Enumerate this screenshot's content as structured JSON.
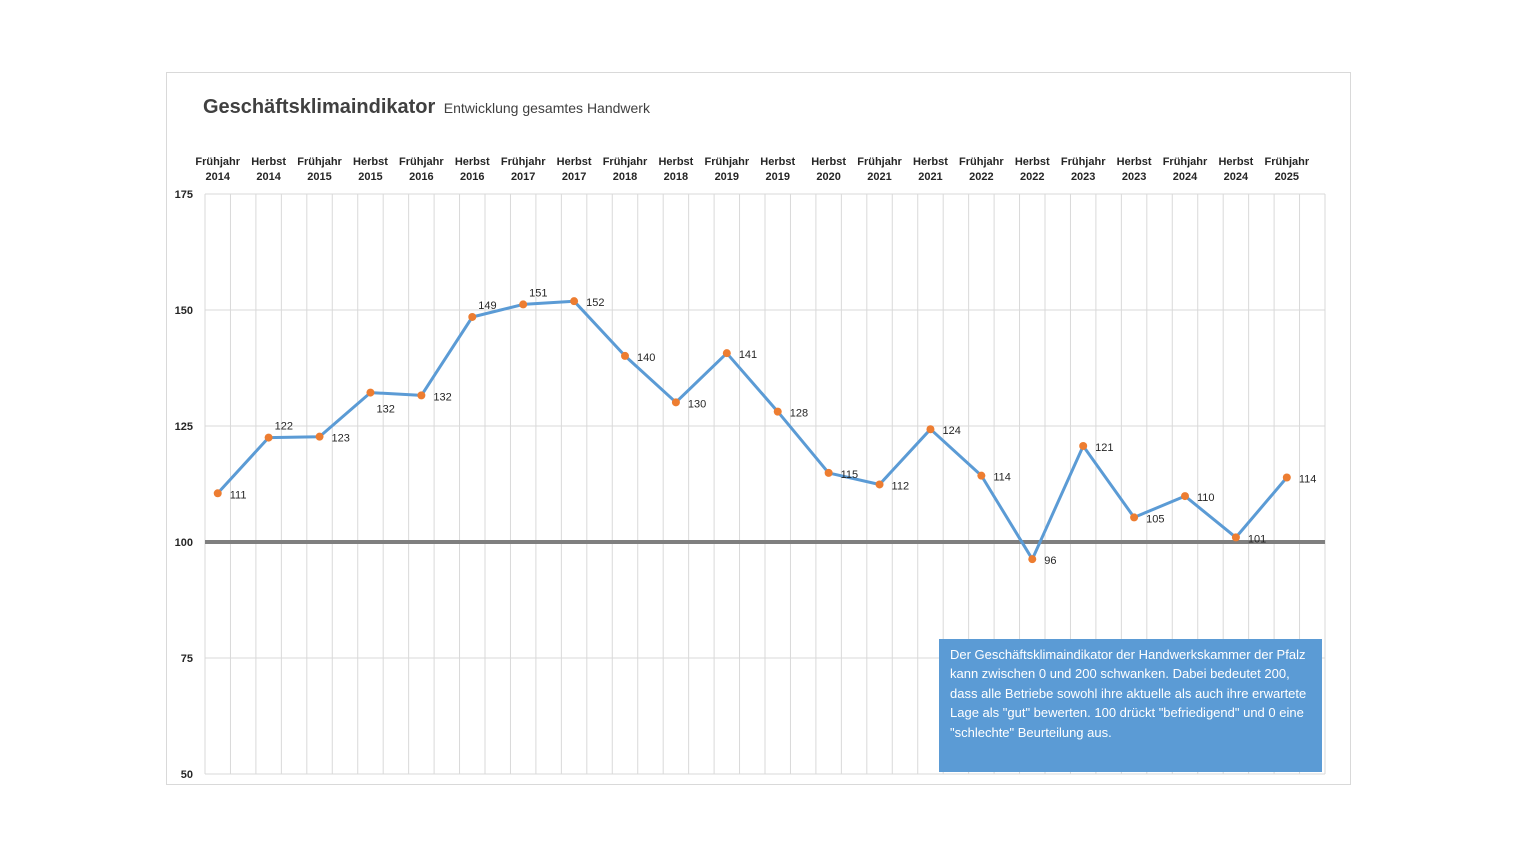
{
  "title": "Geschäftsklimaindikator",
  "subtitle": "Entwicklung gesamtes Handwerk",
  "info_text": "Der Geschäftsklimaindikator der Handwerkskammer der Pfalz kann zwischen 0 und 200 schwanken. Dabei bedeutet 200, dass alle Betriebe sowohl ihre aktuelle als auch ihre erwartete Lage als \"gut\" bewerten. 100 drückt \"befriedigend\" und 0 eine \"schlechte\" Beurteilung aus.",
  "chart_data": {
    "type": "line",
    "title": "Geschäftsklimaindikator",
    "subtitle": "Entwicklung gesamtes Handwerk",
    "categories": [
      [
        "Frühjahr",
        "2014"
      ],
      [
        "Herbst",
        "2014"
      ],
      [
        "Frühjahr",
        "2015"
      ],
      [
        "Herbst",
        "2015"
      ],
      [
        "Frühjahr",
        "2016"
      ],
      [
        "Herbst",
        "2016"
      ],
      [
        "Frühjahr",
        "2017"
      ],
      [
        "Herbst",
        "2017"
      ],
      [
        "Frühjahr",
        "2018"
      ],
      [
        "Herbst",
        "2018"
      ],
      [
        "Frühjahr",
        "2019"
      ],
      [
        "Herbst",
        "2019"
      ],
      [
        "Herbst",
        "2020"
      ],
      [
        "Frühjahr",
        "2021"
      ],
      [
        "Herbst",
        "2021"
      ],
      [
        "Frühjahr",
        "2022"
      ],
      [
        "Herbst",
        "2022"
      ],
      [
        "Frühjahr",
        "2023"
      ],
      [
        "Herbst",
        "2023"
      ],
      [
        "Frühjahr",
        "2024"
      ],
      [
        "Herbst",
        "2024"
      ],
      [
        "Frühjahr",
        "2025"
      ]
    ],
    "category_slots": [
      0,
      2,
      4,
      6,
      8,
      10,
      12,
      14,
      16,
      18,
      20,
      22,
      24,
      26,
      28,
      30,
      32,
      34,
      36,
      38,
      40,
      42
    ],
    "slot_count": 44,
    "values": [
      110.5,
      122.5,
      122.7,
      132.2,
      131.6,
      148.5,
      151.2,
      151.9,
      140.1,
      130.1,
      140.7,
      128.1,
      114.9,
      112.4,
      124.3,
      114.3,
      96.3,
      120.7,
      105.3,
      109.9,
      101.0,
      113.9
    ],
    "data_labels": [
      "111",
      "122",
      "123",
      "132",
      "132",
      "149",
      "151",
      "152",
      "140",
      "130",
      "141",
      "128",
      "115",
      "112",
      "124",
      "114",
      "96",
      "121",
      "105",
      "110",
      "101",
      "114"
    ],
    "ylim": [
      50,
      175
    ],
    "yticks": [
      50,
      75,
      100,
      125,
      150,
      175
    ],
    "reference_line": 100,
    "grid": true,
    "colors": {
      "line": "#5b9bd5",
      "marker": "#ed7d31",
      "reference": "#7f7f7f",
      "grid": "#d9d9d9",
      "box": "#5b9bd5"
    }
  }
}
